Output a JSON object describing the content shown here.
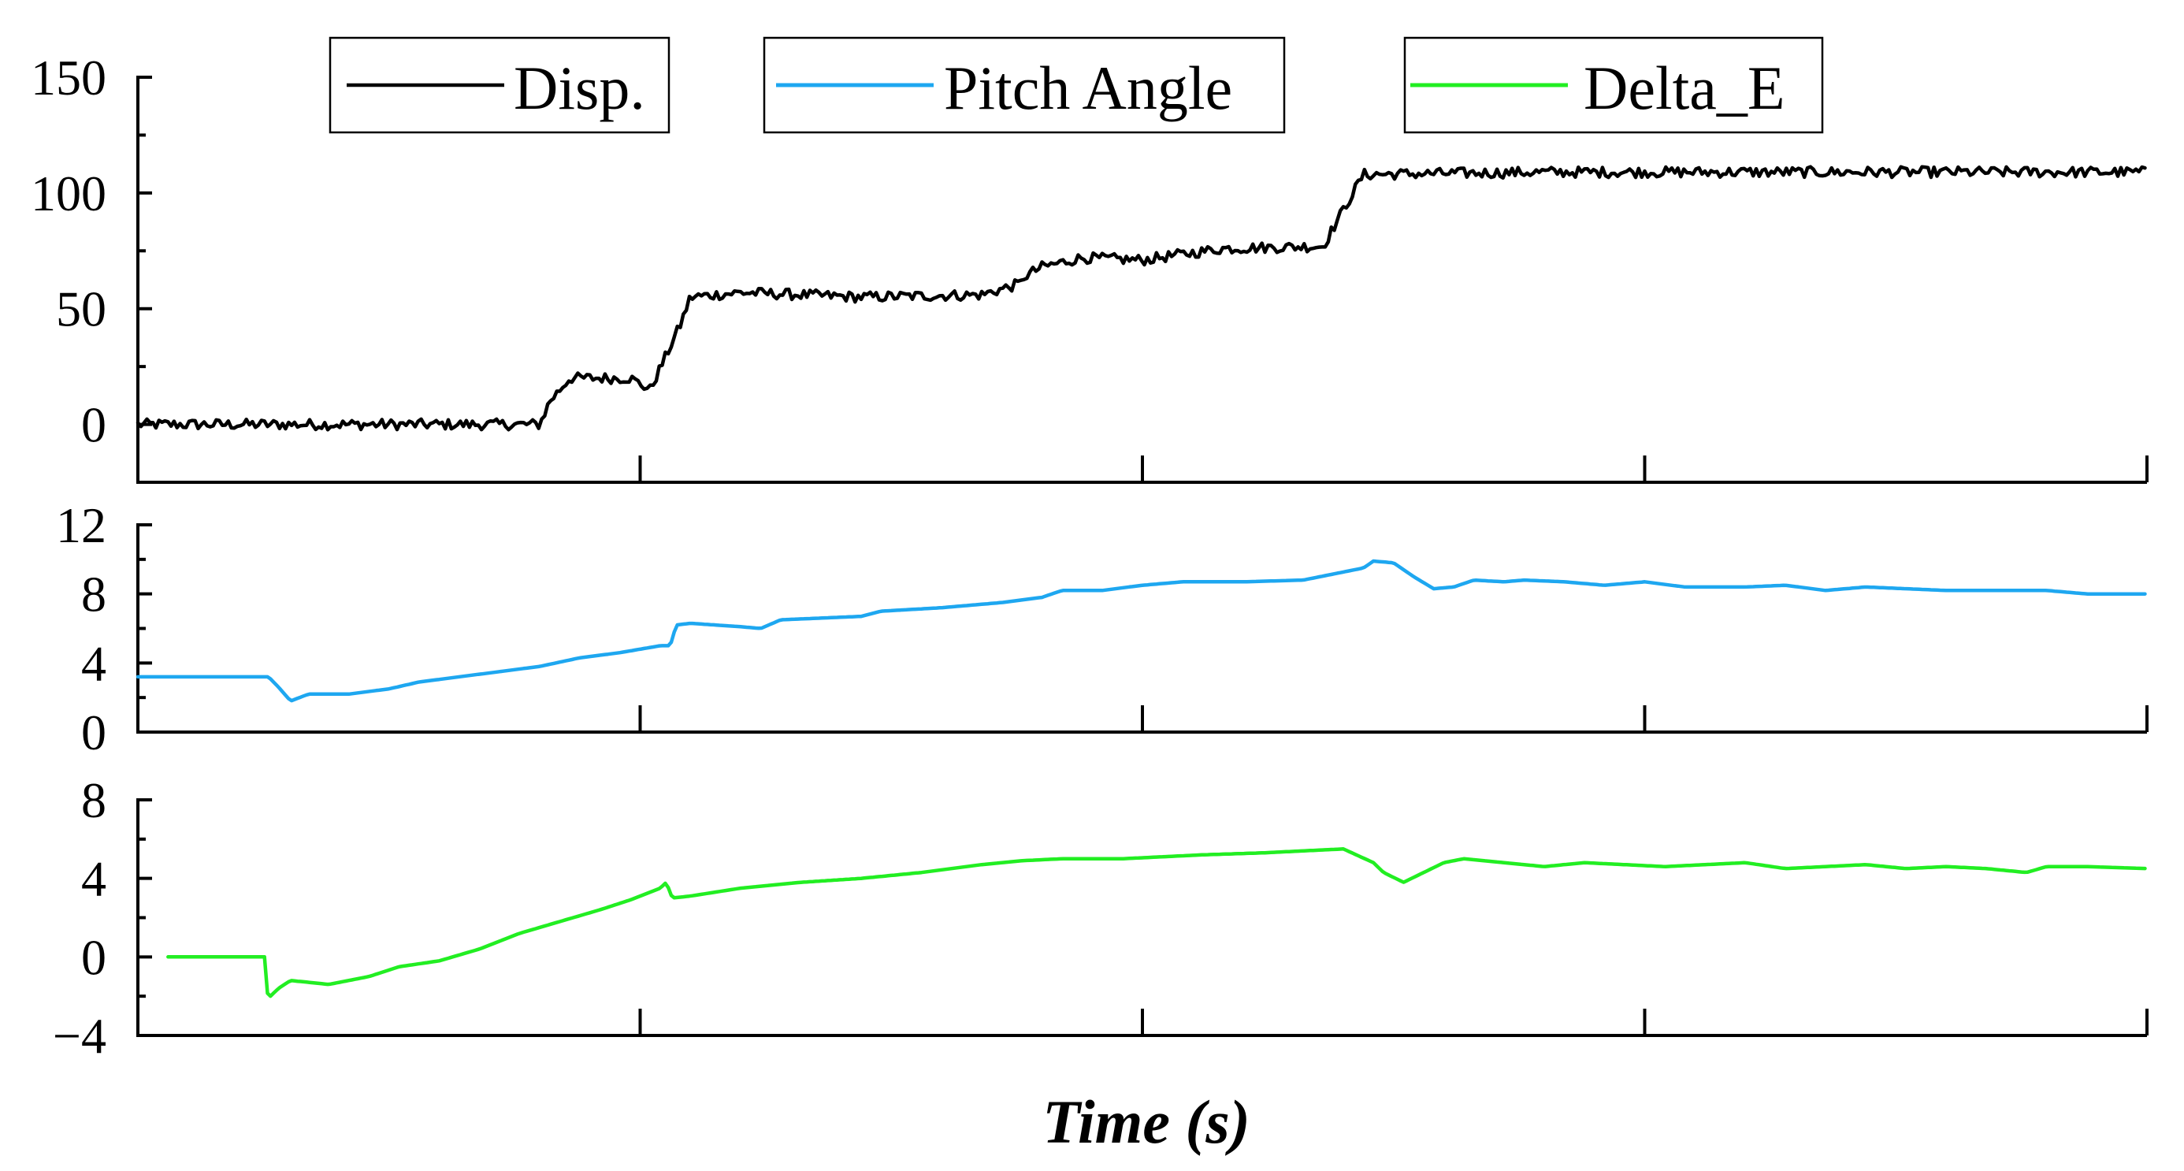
{
  "chart_data": {
    "type": "line",
    "xlabel": "Time (s)",
    "x_range": [
      0,
      100
    ],
    "legend": [
      {
        "label": "Disp.",
        "color": "#000000"
      },
      {
        "label": "Pitch Angle",
        "color": "#1ea7f0"
      },
      {
        "label": "Delta_E",
        "color": "#22ee22"
      }
    ],
    "panels": [
      {
        "name": "displacement",
        "series_name": "Disp.",
        "color": "#000000",
        "ylim": [
          -25,
          150
        ],
        "yticks": [
          0,
          50,
          100,
          150
        ],
        "ytick_labels": [
          "0",
          "50",
          "100",
          "150"
        ],
        "noise": 2.3,
        "points": [
          [
            0,
            0
          ],
          [
            20,
            0
          ],
          [
            20.5,
            10
          ],
          [
            21.5,
            20
          ],
          [
            24.5,
            20
          ],
          [
            25.5,
            15
          ],
          [
            27,
            43
          ],
          [
            27.5,
            55
          ],
          [
            30,
            57
          ],
          [
            36,
            55
          ],
          [
            42,
            56
          ],
          [
            44,
            61
          ],
          [
            43.5,
            61
          ],
          [
            45,
            68
          ],
          [
            47,
            72
          ],
          [
            50,
            71
          ],
          [
            54,
            76
          ],
          [
            59,
            77
          ],
          [
            59.5,
            85
          ],
          [
            61,
            108
          ],
          [
            70,
            109
          ],
          [
            100,
            109
          ]
        ]
      },
      {
        "name": "pitch-angle",
        "series_name": "Pitch Angle",
        "color": "#1ea7f0",
        "ylim": [
          0,
          12
        ],
        "yticks": [
          0,
          4,
          8,
          12
        ],
        "ytick_labels": [
          "0",
          "4",
          "8",
          "12"
        ],
        "noise": 0,
        "points": [
          [
            0,
            3.2
          ],
          [
            6.5,
            3.2
          ],
          [
            7,
            2.6
          ],
          [
            7.6,
            1.8
          ],
          [
            8.5,
            2.2
          ],
          [
            10.5,
            2.2
          ],
          [
            12.5,
            2.5
          ],
          [
            14,
            2.9
          ],
          [
            16,
            3.2
          ],
          [
            18,
            3.5
          ],
          [
            20,
            3.8
          ],
          [
            22,
            4.3
          ],
          [
            24,
            4.6
          ],
          [
            26,
            5.0
          ],
          [
            26.5,
            5.0
          ],
          [
            26.8,
            6.2
          ],
          [
            27.5,
            6.3
          ],
          [
            30,
            6.1
          ],
          [
            31,
            6.0
          ],
          [
            32,
            6.5
          ],
          [
            36,
            6.7
          ],
          [
            37,
            7.0
          ],
          [
            40,
            7.2
          ],
          [
            43,
            7.5
          ],
          [
            45,
            7.8
          ],
          [
            46,
            8.2
          ],
          [
            48,
            8.2
          ],
          [
            50,
            8.5
          ],
          [
            52,
            8.7
          ],
          [
            55,
            8.7
          ],
          [
            58,
            8.8
          ],
          [
            61,
            9.5
          ],
          [
            61.5,
            9.9
          ],
          [
            62.5,
            9.8
          ],
          [
            63.5,
            9.0
          ],
          [
            64.5,
            8.3
          ],
          [
            65.5,
            8.4
          ],
          [
            66.5,
            8.8
          ],
          [
            68,
            8.7
          ],
          [
            69,
            8.8
          ],
          [
            71,
            8.7
          ],
          [
            73,
            8.5
          ],
          [
            75,
            8.7
          ],
          [
            77,
            8.4
          ],
          [
            80,
            8.4
          ],
          [
            82,
            8.5
          ],
          [
            84,
            8.2
          ],
          [
            86,
            8.4
          ],
          [
            88,
            8.3
          ],
          [
            90,
            8.2
          ],
          [
            92,
            8.2
          ],
          [
            95,
            8.2
          ],
          [
            97,
            8.0
          ],
          [
            100,
            8.0
          ]
        ]
      },
      {
        "name": "delta-e",
        "series_name": "Delta_E",
        "color": "#22ee22",
        "ylim": [
          -4,
          8
        ],
        "yticks": [
          -4,
          0,
          4,
          8
        ],
        "ytick_labels": [
          "−4",
          "0",
          "4",
          "8"
        ],
        "noise": 0,
        "points": [
          [
            1.5,
            0
          ],
          [
            6.3,
            0
          ],
          [
            6.4,
            -1.8
          ],
          [
            6.6,
            -2.0
          ],
          [
            7,
            -1.6
          ],
          [
            7.6,
            -1.2
          ],
          [
            9.5,
            -1.4
          ],
          [
            11.5,
            -1.0
          ],
          [
            13,
            -0.5
          ],
          [
            15,
            -0.2
          ],
          [
            17,
            0.4
          ],
          [
            19,
            1.2
          ],
          [
            21,
            1.8
          ],
          [
            23,
            2.4
          ],
          [
            24.5,
            2.9
          ],
          [
            26,
            3.5
          ],
          [
            26.3,
            3.8
          ],
          [
            26.6,
            3.0
          ],
          [
            27.5,
            3.1
          ],
          [
            30,
            3.5
          ],
          [
            33,
            3.8
          ],
          [
            36,
            4.0
          ],
          [
            39,
            4.3
          ],
          [
            42,
            4.7
          ],
          [
            44,
            4.9
          ],
          [
            46,
            5.0
          ],
          [
            49,
            5.0
          ],
          [
            53,
            5.2
          ],
          [
            56,
            5.3
          ],
          [
            58,
            5.4
          ],
          [
            60,
            5.5
          ],
          [
            61.5,
            4.8
          ],
          [
            62,
            4.3
          ],
          [
            63,
            3.8
          ],
          [
            64,
            4.3
          ],
          [
            65,
            4.8
          ],
          [
            66,
            5.0
          ],
          [
            68,
            4.8
          ],
          [
            70,
            4.6
          ],
          [
            72,
            4.8
          ],
          [
            74,
            4.7
          ],
          [
            76,
            4.6
          ],
          [
            78,
            4.7
          ],
          [
            80,
            4.8
          ],
          [
            82,
            4.5
          ],
          [
            84,
            4.6
          ],
          [
            86,
            4.7
          ],
          [
            88,
            4.5
          ],
          [
            90,
            4.6
          ],
          [
            92,
            4.5
          ],
          [
            94,
            4.3
          ],
          [
            95,
            4.6
          ],
          [
            97,
            4.6
          ],
          [
            100,
            4.5
          ]
        ]
      }
    ]
  }
}
